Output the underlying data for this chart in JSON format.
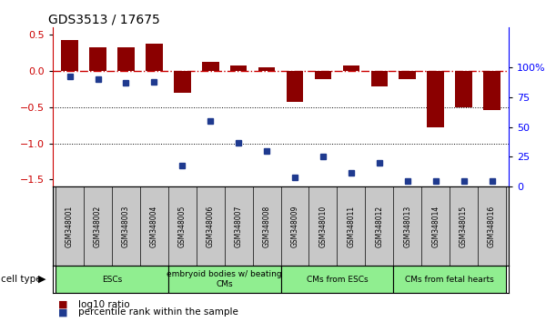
{
  "title": "GDS3513 / 17675",
  "samples": [
    "GSM348001",
    "GSM348002",
    "GSM348003",
    "GSM348004",
    "GSM348005",
    "GSM348006",
    "GSM348007",
    "GSM348008",
    "GSM348009",
    "GSM348010",
    "GSM348011",
    "GSM348012",
    "GSM348013",
    "GSM348014",
    "GSM348015",
    "GSM348016"
  ],
  "log10_ratio": [
    0.43,
    0.32,
    0.33,
    0.37,
    -0.3,
    0.12,
    0.08,
    0.05,
    -0.43,
    -0.12,
    0.08,
    -0.21,
    -0.12,
    -0.78,
    -0.5,
    -0.54
  ],
  "percentile_rank": [
    92,
    90,
    87,
    88,
    18,
    55,
    37,
    30,
    8,
    25,
    12,
    20,
    5,
    5,
    5,
    5
  ],
  "bar_color": "#8B0000",
  "dot_color": "#1F3A8F",
  "zero_line_color": "#CC0000",
  "left_ylim": [
    -1.6,
    0.6
  ],
  "right_ylim": [
    0,
    133.33
  ],
  "left_yticks": [
    0.5,
    0.0,
    -0.5,
    -1.0,
    -1.5
  ],
  "right_yticks": [
    100,
    75,
    50,
    25,
    0
  ],
  "hlines": [
    -0.5,
    -1.0
  ],
  "group_defs": [
    {
      "start": 0,
      "end": 3,
      "label": "ESCs"
    },
    {
      "start": 4,
      "end": 7,
      "label": "embryoid bodies w/ beating\nCMs"
    },
    {
      "start": 8,
      "end": 11,
      "label": "CMs from ESCs"
    },
    {
      "start": 12,
      "end": 15,
      "label": "CMs from fetal hearts"
    }
  ],
  "group_color": "#90EE90",
  "sample_box_color": "#C8C8C8",
  "legend_items": [
    {
      "color": "#8B0000",
      "label": "log10 ratio"
    },
    {
      "color": "#1F3A8F",
      "label": "percentile rank within the sample"
    }
  ]
}
